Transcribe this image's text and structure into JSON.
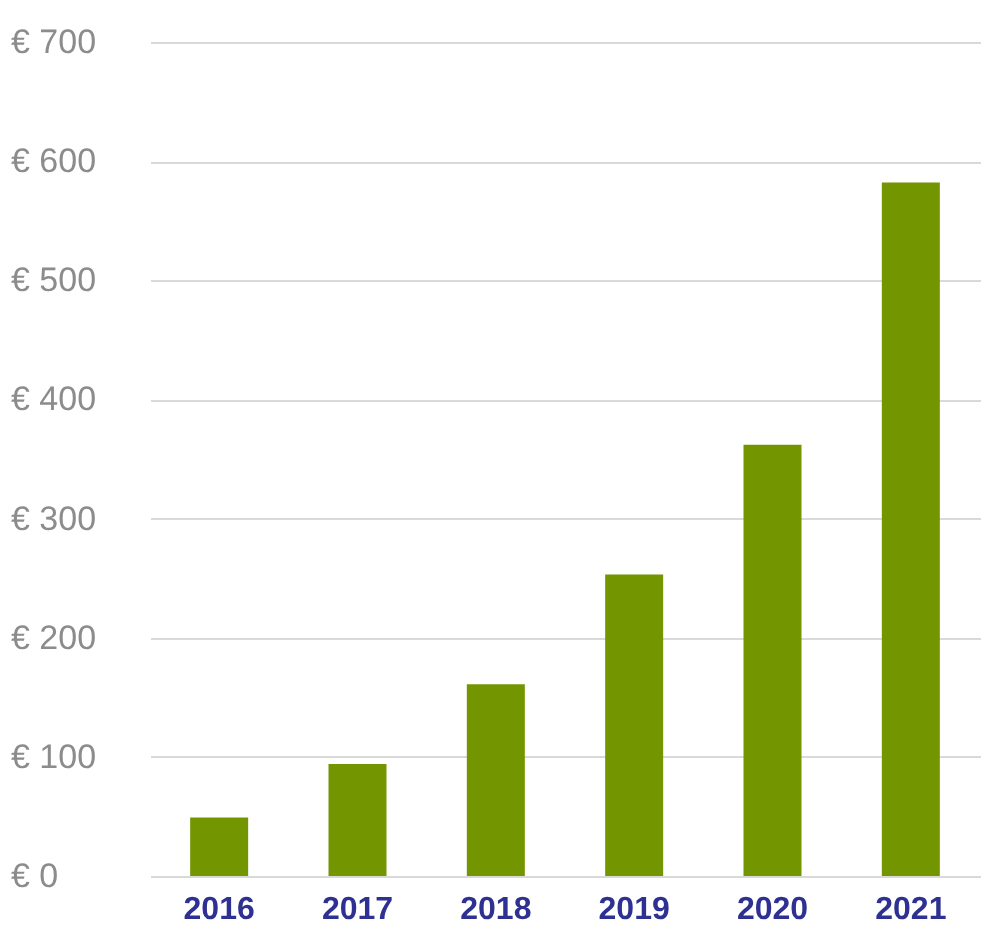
{
  "chart_data": {
    "type": "bar",
    "categories": [
      "2016",
      "2017",
      "2018",
      "2019",
      "2020",
      "2021"
    ],
    "values": [
      49,
      94,
      161,
      253,
      362,
      582
    ],
    "color": "#739600",
    "ylim": [
      0,
      700
    ],
    "yticks": [
      {
        "value": 0,
        "label": "€ 0"
      },
      {
        "value": 100,
        "label": "€ 100"
      },
      {
        "value": 200,
        "label": "€ 200"
      },
      {
        "value": 300,
        "label": "€ 300"
      },
      {
        "value": 400,
        "label": "€ 400"
      },
      {
        "value": 500,
        "label": "€ 500"
      },
      {
        "value": 600,
        "label": "€ 600"
      },
      {
        "value": 700,
        "label": "€ 700"
      }
    ],
    "grid": "y"
  }
}
